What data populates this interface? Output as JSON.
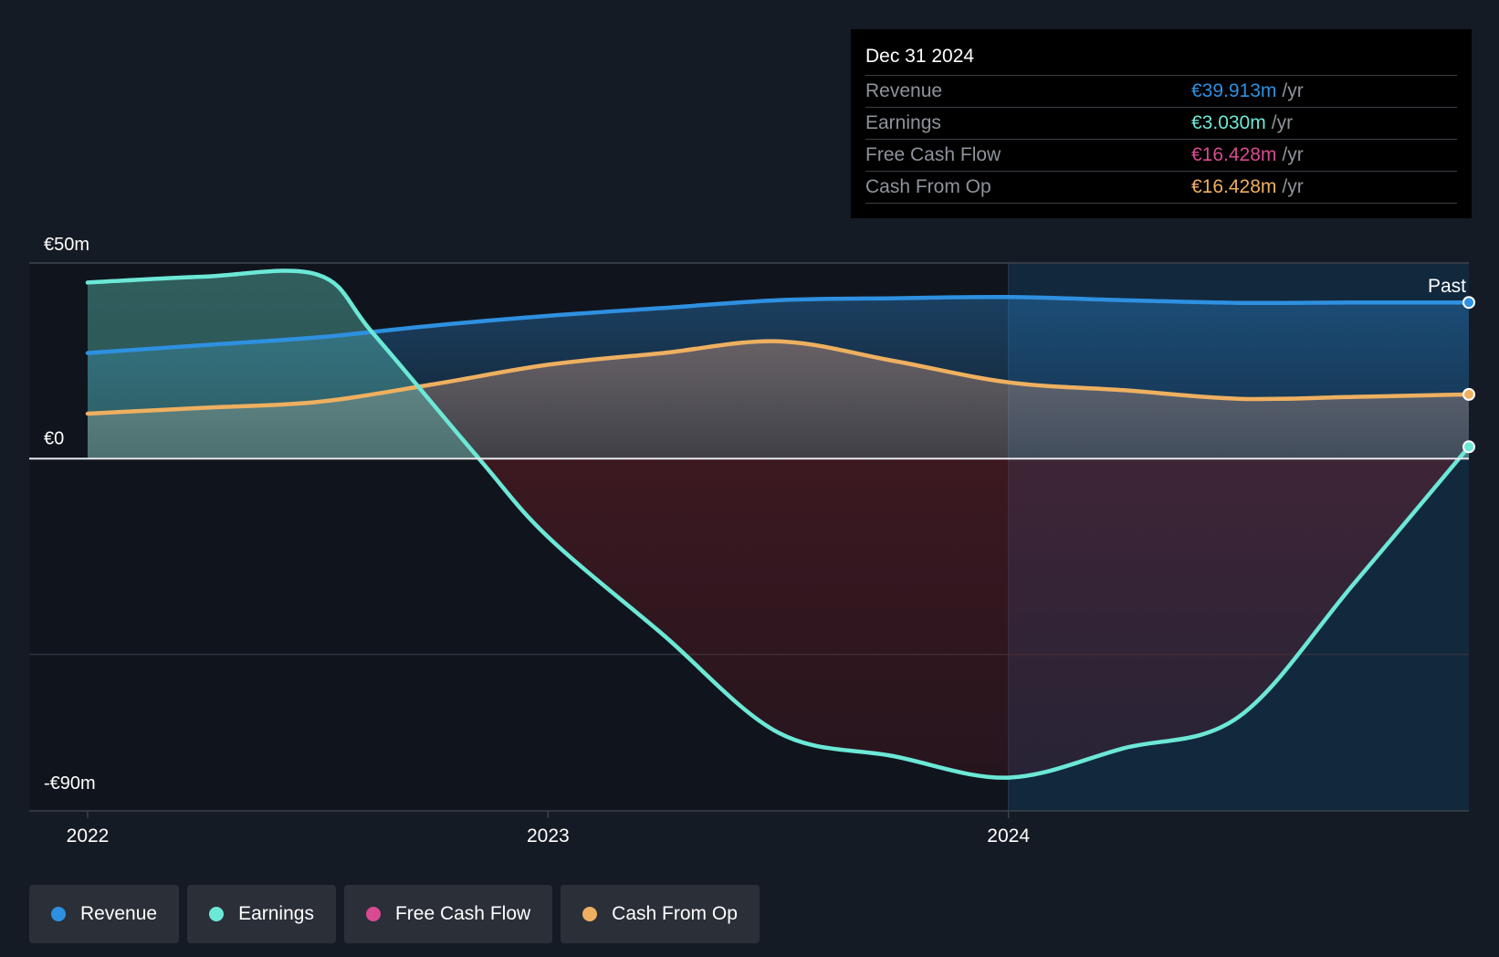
{
  "colors": {
    "revenue": "#2e90e0",
    "earnings": "#6ce8d6",
    "fcf": "#d84a91",
    "cfo": "#eeb060"
  },
  "tooltip": {
    "date": "Dec 31 2024",
    "rows": [
      {
        "label": "Revenue",
        "value": "€39.913m",
        "unit": "/yr"
      },
      {
        "label": "Earnings",
        "value": "€3.030m",
        "unit": "/yr"
      },
      {
        "label": "Free Cash Flow",
        "value": "€16.428m",
        "unit": "/yr"
      },
      {
        "label": "Cash From Op",
        "value": "€16.428m",
        "unit": "/yr"
      }
    ]
  },
  "legend": [
    {
      "label": "Revenue",
      "key": "revenue"
    },
    {
      "label": "Earnings",
      "key": "earnings"
    },
    {
      "label": "Free Cash Flow",
      "key": "fcf"
    },
    {
      "label": "Cash From Op",
      "key": "cfo"
    }
  ],
  "chart_data": {
    "type": "area",
    "title": "",
    "xlabel": "",
    "ylabel": "",
    "past_label": "Past",
    "ylim": [
      -90,
      50
    ],
    "xlim": [
      2022.0,
      2025.0
    ],
    "y_tick_labels": [
      {
        "value": 50,
        "label": "€50m"
      },
      {
        "value": 0,
        "label": "€0"
      },
      {
        "value": -90,
        "label": "-€90m"
      }
    ],
    "x_tick_labels": [
      {
        "value": 2022.0,
        "label": "2022"
      },
      {
        "value": 2023.0,
        "label": "2023"
      },
      {
        "value": 2024.0,
        "label": "2024"
      }
    ],
    "series": [
      {
        "name": "Revenue",
        "key": "revenue",
        "x": [
          2022.0,
          2022.25,
          2022.5,
          2022.75,
          2023.0,
          2023.25,
          2023.5,
          2023.75,
          2024.0,
          2024.25,
          2024.5,
          2024.75,
          2025.0
        ],
        "values": [
          27,
          29,
          31,
          34,
          36.5,
          38.5,
          40.5,
          41,
          41.3,
          40.5,
          39.8,
          39.9,
          39.913
        ]
      },
      {
        "name": "Earnings",
        "key": "earnings",
        "x": [
          2022.0,
          2022.25,
          2022.5,
          2022.62,
          2022.85,
          2023.0,
          2023.25,
          2023.5,
          2023.75,
          2024.0,
          2024.25,
          2024.5,
          2024.75,
          2025.0
        ],
        "values": [
          45,
          46.5,
          47,
          32,
          0,
          -20,
          -45,
          -70,
          -76,
          -81.5,
          -74,
          -66,
          -32,
          3.03
        ]
      },
      {
        "name": "Free Cash Flow",
        "key": "fcf",
        "x": [
          2022.0,
          2022.5,
          2023.0,
          2023.5,
          2024.0,
          2024.5,
          2025.0
        ],
        "values": [
          12,
          15,
          24,
          30,
          19.5,
          15.5,
          16.428
        ]
      },
      {
        "name": "Cash From Op",
        "key": "cfo",
        "x": [
          2022.0,
          2022.25,
          2022.5,
          2022.75,
          2023.0,
          2023.25,
          2023.5,
          2023.75,
          2024.0,
          2024.25,
          2024.5,
          2024.75,
          2025.0
        ],
        "values": [
          11.5,
          13,
          14.5,
          19,
          24,
          27,
          30,
          25,
          19.5,
          17.5,
          15.3,
          15.8,
          16.428
        ]
      }
    ]
  }
}
